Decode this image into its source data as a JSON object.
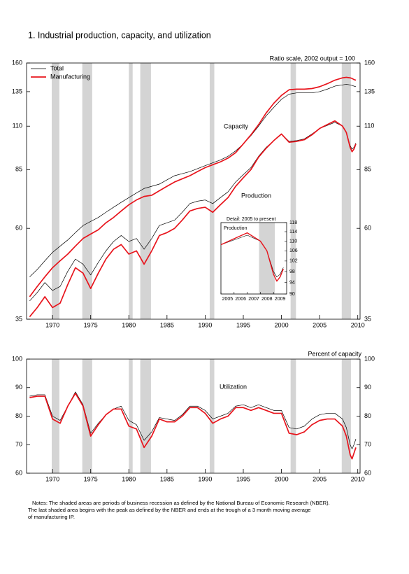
{
  "title": "1.  Industrial production, capacity, and utilization",
  "notes": [
    "Notes: The shaded areas are periods of business recession as defined by the National Bureau of Economic Research (NBER).",
    "The last shaded area begins with the peak as defined by the NBER and ends at the trough of a 3 month moving average",
    "of manufacturing IP."
  ],
  "chart_data": [
    {
      "type": "line",
      "axis_note": "Ratio scale, 2002 output = 100",
      "capacity_label": "Capacity",
      "production_label": "Production",
      "log_scale": true,
      "legend": "upper left",
      "x": [
        1967,
        1968,
        1969,
        1970,
        1971,
        1972,
        1973,
        1974,
        1975,
        1976,
        1977,
        1978,
        1979,
        1980,
        1981,
        1982,
        1983,
        1984,
        1985,
        1986,
        1987,
        1988,
        1989,
        1990,
        1991,
        1992,
        1993,
        1994,
        1995,
        1996,
        1997,
        1998,
        1999,
        2000,
        2001,
        2002,
        2003,
        2004,
        2005,
        2006,
        2007,
        2008,
        2008.5,
        2009,
        2009.25,
        2009.5,
        2009.75
      ],
      "xlim": [
        1966.6,
        2010.3
      ],
      "xticks": [
        1970,
        1975,
        1980,
        1985,
        1990,
        1995,
        2000,
        2005,
        2010
      ],
      "ylim": [
        35,
        160
      ],
      "yticks": [
        35,
        60,
        85,
        110,
        135,
        160
      ],
      "recessions": [
        [
          1969.9,
          1970.9
        ],
        [
          1973.9,
          1975.2
        ],
        [
          1980.0,
          1980.5
        ],
        [
          1981.5,
          1982.9
        ],
        [
          1990.6,
          1991.2
        ],
        [
          2001.2,
          2001.9
        ],
        [
          2007.9,
          2009.1
        ]
      ],
      "series": [
        {
          "name": "Total",
          "color": "#000000",
          "capacity": [
            45,
            47,
            49.5,
            52,
            54,
            56,
            58.5,
            61,
            62.5,
            64,
            66,
            68,
            70,
            72,
            74,
            76,
            77,
            78,
            80,
            82,
            83,
            84,
            85.5,
            87,
            88.5,
            90,
            92,
            95,
            99,
            104,
            110,
            117,
            123,
            129,
            133,
            134,
            134,
            134,
            135,
            137,
            139.5,
            140.5,
            141,
            140.5,
            140,
            139.5,
            139
          ],
          "production": [
            39,
            41,
            43.5,
            41.5,
            42.5,
            46.5,
            50,
            48.5,
            45.5,
            49,
            52.5,
            55.5,
            57.5,
            55.5,
            56.5,
            53,
            56.5,
            61,
            62,
            63,
            66,
            69.5,
            70.5,
            71,
            69.5,
            72,
            74.5,
            79,
            82.5,
            86,
            92,
            97,
            101,
            105,
            100.5,
            101,
            102,
            105,
            108.5,
            110.5,
            112.5,
            110,
            106,
            98,
            96,
            97,
            99.5
          ],
          "utilization": [
            87,
            87.5,
            87.5,
            80,
            78.5,
            83.5,
            88.5,
            84,
            74,
            77.5,
            80.5,
            82.5,
            83.5,
            78.5,
            77,
            71.5,
            74.5,
            79.5,
            79,
            78.5,
            80.5,
            83.5,
            83.5,
            82,
            79,
            80,
            81,
            83.5,
            84,
            83,
            84,
            83,
            82,
            82,
            76,
            75.5,
            76.5,
            79,
            80.5,
            81,
            81,
            79,
            76,
            70,
            68.5,
            70,
            72
          ]
        },
        {
          "name": "Manufacturing",
          "color": "#e8141c",
          "capacity": [
            40,
            42.5,
            45,
            47.5,
            49.5,
            51.5,
            54,
            56.5,
            58,
            59.5,
            62,
            64,
            66.5,
            69,
            71,
            72.5,
            73,
            75,
            77,
            79,
            80.5,
            82,
            84,
            86,
            87.5,
            89,
            91,
            94,
            99,
            104.5,
            111,
            119,
            126,
            132,
            136.5,
            137,
            137,
            137.5,
            139,
            141.5,
            144.5,
            146.5,
            147,
            146.5,
            146,
            145,
            144.5
          ],
          "production": [
            35.5,
            37.5,
            40,
            37.5,
            38.5,
            43,
            47.5,
            46,
            42,
            46,
            50,
            53,
            54.5,
            51.5,
            52.5,
            48.5,
            52.5,
            57.5,
            58.5,
            60,
            63,
            66.5,
            67.5,
            68,
            66,
            69,
            72,
            77,
            81,
            85,
            91.5,
            96.5,
            101,
            105,
            100,
            100.5,
            101.5,
            104.5,
            108.5,
            111,
            113.5,
            110,
            106,
            97,
            94.5,
            96,
            99
          ],
          "utilization": [
            86.5,
            87,
            87,
            79,
            77.5,
            83.5,
            88,
            83.5,
            73,
            77,
            80.5,
            82.5,
            82.5,
            76.5,
            75.5,
            69,
            73,
            79,
            78,
            78,
            80,
            83,
            83,
            81,
            77.5,
            79,
            80,
            83,
            83,
            82,
            83,
            82,
            81,
            81,
            74,
            73.5,
            74.5,
            77,
            78.5,
            79,
            79,
            76.5,
            73,
            66.5,
            65,
            67,
            69
          ]
        }
      ]
    },
    {
      "type": "line",
      "title": "Detail: 2005 to present",
      "label": "Production",
      "log_scale": true,
      "xlim": [
        2005,
        2010
      ],
      "xticks": [
        2005,
        2006,
        2007,
        2008,
        2009
      ],
      "ylim": [
        90,
        118
      ],
      "yticks": [
        90,
        94,
        98,
        102,
        106,
        110,
        114,
        118
      ]
    },
    {
      "type": "line",
      "title": "Utilization",
      "axis_note": "Percent of capacity",
      "ylim": [
        60,
        100
      ],
      "yticks": [
        60,
        70,
        80,
        90,
        100
      ]
    }
  ]
}
